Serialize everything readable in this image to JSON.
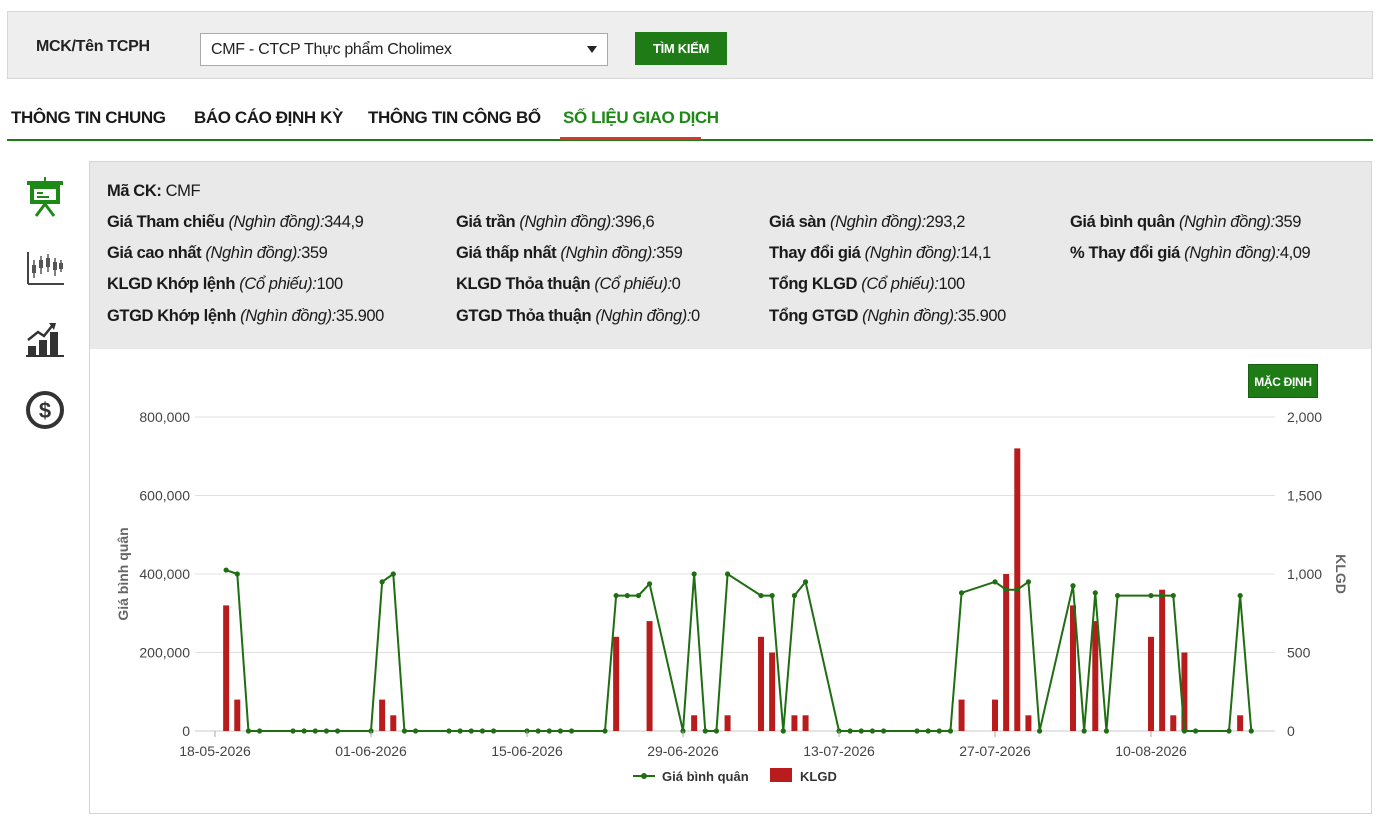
{
  "search": {
    "label": "MCK/Tên TCPH",
    "selected": "CMF - CTCP Thực phẩm Cholimex",
    "button": "TÌM KIẾM"
  },
  "tabs": [
    {
      "label": "THÔNG TIN CHUNG",
      "active": false
    },
    {
      "label": "BÁO CÁO ĐỊNH KỲ",
      "active": false
    },
    {
      "label": "THÔNG TIN CÔNG BỐ",
      "active": false
    },
    {
      "label": "SỐ LIỆU GIAO DỊCH",
      "active": true
    }
  ],
  "side_icons": [
    "presentation-icon",
    "candlestick-chart-icon",
    "bar-growth-icon",
    "dollar-coin-icon"
  ],
  "info": {
    "ma_ck": {
      "label": "Mã CK:",
      "value": "CMF"
    },
    "gia_tham_chieu": {
      "label": "Giá Tham chiếu",
      "unit": "(Nghìn đồng):",
      "value": "344,9"
    },
    "gia_tran": {
      "label": "Giá trần",
      "unit": "(Nghìn đồng):",
      "value": "396,6"
    },
    "gia_san": {
      "label": "Giá sàn",
      "unit": "(Nghìn đồng):",
      "value": "293,2"
    },
    "gia_binh_quan": {
      "label": "Giá bình quân",
      "unit": "(Nghìn đồng):",
      "value": "359"
    },
    "gia_cao_nhat": {
      "label": "Giá cao nhất",
      "unit": "(Nghìn đồng):",
      "value": "359"
    },
    "gia_thap_nhat": {
      "label": "Giá thấp nhất",
      "unit": "(Nghìn đồng):",
      "value": "359"
    },
    "thay_doi_gia": {
      "label": "Thay đổi giá",
      "unit": "(Nghìn đồng):",
      "value": "14,1"
    },
    "pct_thay_doi_gia": {
      "label": "% Thay đổi giá",
      "unit": "(Nghìn đồng):",
      "value": "4,09"
    },
    "klgd_khop_lenh": {
      "label": "KLGD Khớp lệnh",
      "unit": "(Cổ phiếu):",
      "value": "100"
    },
    "klgd_thoa_thuan": {
      "label": "KLGD Thỏa thuận",
      "unit": "(Cổ phiếu):",
      "value": "0"
    },
    "tong_klgd": {
      "label": "Tổng KLGD",
      "unit": "(Cổ phiếu):",
      "value": "100"
    },
    "gtgd_khop_lenh": {
      "label": "GTGD Khớp lệnh",
      "unit": "(Nghìn đồng):",
      "value": "35.900"
    },
    "gtgd_thoa_thuan": {
      "label": "GTGD Thỏa thuận",
      "unit": "(Nghìn đồng):",
      "value": "0"
    },
    "tong_gtgd": {
      "label": "Tổng GTGD",
      "unit": "(Nghìn đồng):",
      "value": "35.900"
    }
  },
  "default_button": "MẶC ĐỊNH",
  "colors": {
    "accent": "#1e7b15",
    "line": "#1f6e12",
    "bar": "#b81c1c",
    "active_tab": "#1e8a16",
    "tab_underline": "#dd3333"
  },
  "chart_data": {
    "type": "bar+line",
    "x_range": [
      "2026-05-18",
      "2026-08-26"
    ],
    "x_ticks": [
      "18-05-2026",
      "01-06-2026",
      "15-06-2026",
      "29-06-2026",
      "13-07-2026",
      "27-07-2026",
      "10-08-2026"
    ],
    "y_left": {
      "label": "Giá bình quân",
      "range": [
        0,
        800000
      ],
      "ticks": [
        "800,000",
        "600,000",
        "400,000",
        "200,000",
        "0"
      ]
    },
    "y_right": {
      "label": "KLGD",
      "range": [
        0,
        2000
      ],
      "ticks": [
        "2,000",
        "1,500",
        "1,000",
        "500",
        "0"
      ]
    },
    "legend": [
      "Giá bình quân",
      "KLGD"
    ],
    "legend_position": "bottom-center",
    "grid": true,
    "line": [
      [
        "2026-05-19",
        410000
      ],
      [
        "2026-05-20",
        400000
      ],
      [
        "2026-05-21",
        0
      ],
      [
        "2026-05-22",
        0
      ],
      [
        "2026-05-25",
        0
      ],
      [
        "2026-05-26",
        0
      ],
      [
        "2026-05-27",
        0
      ],
      [
        "2026-05-28",
        0
      ],
      [
        "2026-05-29",
        0
      ],
      [
        "2026-06-01",
        0
      ],
      [
        "2026-06-02",
        380000
      ],
      [
        "2026-06-03",
        400000
      ],
      [
        "2026-06-04",
        0
      ],
      [
        "2026-06-05",
        0
      ],
      [
        "2026-06-08",
        0
      ],
      [
        "2026-06-09",
        0
      ],
      [
        "2026-06-10",
        0
      ],
      [
        "2026-06-11",
        0
      ],
      [
        "2026-06-12",
        0
      ],
      [
        "2026-06-15",
        0
      ],
      [
        "2026-06-16",
        0
      ],
      [
        "2026-06-17",
        0
      ],
      [
        "2026-06-18",
        0
      ],
      [
        "2026-06-19",
        0
      ],
      [
        "2026-06-22",
        0
      ],
      [
        "2026-06-23",
        345000
      ],
      [
        "2026-06-24",
        345000
      ],
      [
        "2026-06-25",
        345000
      ],
      [
        "2026-06-26",
        375000
      ],
      [
        "2026-06-29",
        0
      ],
      [
        "2026-06-30",
        400000
      ],
      [
        "2026-07-01",
        0
      ],
      [
        "2026-07-02",
        0
      ],
      [
        "2026-07-03",
        400000
      ],
      [
        "2026-07-06",
        345000
      ],
      [
        "2026-07-07",
        345000
      ],
      [
        "2026-07-08",
        0
      ],
      [
        "2026-07-09",
        345000
      ],
      [
        "2026-07-10",
        380000
      ],
      [
        "2026-07-13",
        0
      ],
      [
        "2026-07-14",
        0
      ],
      [
        "2026-07-15",
        0
      ],
      [
        "2026-07-16",
        0
      ],
      [
        "2026-07-17",
        0
      ],
      [
        "2026-07-20",
        0
      ],
      [
        "2026-07-21",
        0
      ],
      [
        "2026-07-22",
        0
      ],
      [
        "2026-07-23",
        0
      ],
      [
        "2026-07-24",
        352000
      ],
      [
        "2026-07-27",
        380000
      ],
      [
        "2026-07-28",
        360000
      ],
      [
        "2026-07-29",
        360000
      ],
      [
        "2026-07-30",
        380000
      ],
      [
        "2026-07-31",
        0
      ],
      [
        "2026-08-03",
        370000
      ],
      [
        "2026-08-04",
        0
      ],
      [
        "2026-08-05",
        352000
      ],
      [
        "2026-08-06",
        0
      ],
      [
        "2026-08-07",
        345000
      ],
      [
        "2026-08-10",
        345000
      ],
      [
        "2026-08-11",
        345000
      ],
      [
        "2026-08-12",
        345000
      ],
      [
        "2026-08-13",
        0
      ],
      [
        "2026-08-14",
        0
      ],
      [
        "2026-08-17",
        0
      ],
      [
        "2026-08-18",
        345000
      ],
      [
        "2026-08-19",
        0
      ]
    ],
    "bars": [
      [
        "2026-05-19",
        800
      ],
      [
        "2026-05-20",
        200
      ],
      [
        "2026-06-02",
        200
      ],
      [
        "2026-06-03",
        100
      ],
      [
        "2026-06-23",
        600
      ],
      [
        "2026-06-26",
        700
      ],
      [
        "2026-06-30",
        100
      ],
      [
        "2026-07-03",
        100
      ],
      [
        "2026-07-06",
        600
      ],
      [
        "2026-07-07",
        500
      ],
      [
        "2026-07-09",
        100
      ],
      [
        "2026-07-10",
        100
      ],
      [
        "2026-07-24",
        200
      ],
      [
        "2026-07-27",
        200
      ],
      [
        "2026-07-28",
        1000
      ],
      [
        "2026-07-29",
        1800
      ],
      [
        "2026-07-30",
        100
      ],
      [
        "2026-08-03",
        800
      ],
      [
        "2026-08-05",
        700
      ],
      [
        "2026-08-10",
        600
      ],
      [
        "2026-08-11",
        900
      ],
      [
        "2026-08-12",
        100
      ],
      [
        "2026-08-13",
        500
      ],
      [
        "2026-08-18",
        100
      ]
    ]
  }
}
